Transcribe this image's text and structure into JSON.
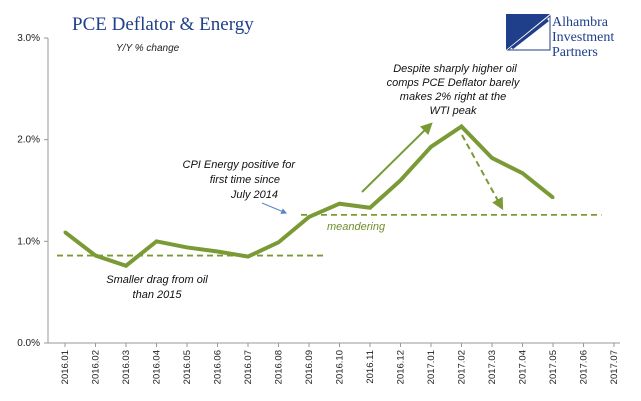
{
  "chart_data": {
    "type": "line",
    "title": "PCE Deflator & Energy",
    "subtitle": "Y/Y % change",
    "categories": [
      "2016.01",
      "2016.02",
      "2016.03",
      "2016.04",
      "2016.05",
      "2016.06",
      "2016.07",
      "2016.08",
      "2016.09",
      "2016.10",
      "2016.11",
      "2016.12",
      "2017.01",
      "2017.02",
      "2017.03",
      "2017.04",
      "2017.05",
      "2017.06",
      "2017.07"
    ],
    "values": [
      1.09,
      0.86,
      0.76,
      1.0,
      0.94,
      0.9,
      0.85,
      0.99,
      1.24,
      1.37,
      1.33,
      1.6,
      1.93,
      2.13,
      1.82,
      1.67,
      1.43,
      null,
      null
    ],
    "ylim": [
      0,
      3
    ],
    "yticks": [
      "0.0%",
      "1.0%",
      "2.0%",
      "3.0%"
    ],
    "grid": false,
    "series_color": "#7a9a35",
    "reference_lines": [
      {
        "from": "2016.01",
        "to": "2016.09",
        "y": 0.86
      },
      {
        "from": "2016.09",
        "to": "2017.06",
        "y": 1.26
      }
    ],
    "annotations": {
      "drag": [
        "Smaller drag from oil",
        "than 2015"
      ],
      "cpi": [
        "CPI Energy positive for",
        "first time since",
        "July 2014"
      ],
      "oil": [
        "Despite sharply higher oil",
        "comps PCE Deflator barely",
        "makes 2% right at the",
        "WTI peak"
      ],
      "meandering": "meandering"
    }
  },
  "logo": {
    "lines": [
      "Alhambra",
      "Investment",
      "Partners"
    ],
    "color": "#1f3f8a"
  }
}
